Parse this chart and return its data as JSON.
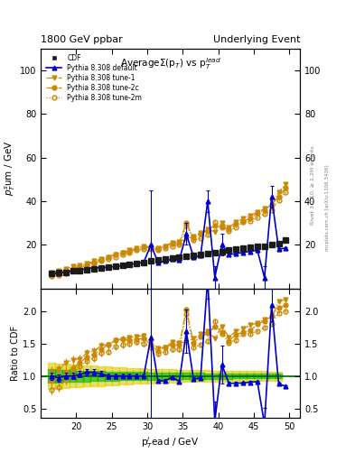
{
  "title_left": "1800 GeV ppbar",
  "title_right": "Underlying Event",
  "plot_title": "Average$\\Sigma$(p$_T$) vs p$_T^{lead}$",
  "xlabel": "p$_T^l$ead / GeV",
  "ylabel_main": "p$_T^s$um / GeV",
  "ylabel_ratio": "Ratio to CDF",
  "xlim": [
    15.0,
    51.5
  ],
  "ylim_main": [
    0,
    110
  ],
  "ylim_ratio": [
    0.35,
    2.35
  ],
  "xticks": [
    20,
    25,
    30,
    35,
    40,
    45,
    50
  ],
  "yticks_main": [
    20,
    40,
    60,
    80,
    100
  ],
  "yticks_ratio": [
    0.5,
    1.0,
    1.5,
    2.0
  ],
  "pt": [
    16.5,
    17.5,
    18.5,
    19.5,
    20.5,
    21.5,
    22.5,
    23.5,
    24.5,
    25.5,
    26.5,
    27.5,
    28.5,
    29.5,
    30.5,
    31.5,
    32.5,
    33.5,
    34.5,
    35.5,
    36.5,
    37.5,
    38.5,
    39.5,
    40.5,
    41.5,
    42.5,
    43.5,
    44.5,
    45.5,
    46.5,
    47.5,
    48.5,
    49.5
  ],
  "cdf_y": [
    7.0,
    7.2,
    7.5,
    8.0,
    8.3,
    8.5,
    9.0,
    9.2,
    9.8,
    10.0,
    10.5,
    11.0,
    11.5,
    12.0,
    12.5,
    13.0,
    13.5,
    13.8,
    14.2,
    14.8,
    15.2,
    15.5,
    16.0,
    16.5,
    17.0,
    17.5,
    18.0,
    18.5,
    18.8,
    19.2,
    19.5,
    20.0,
    20.5,
    22.0
  ],
  "cdf_yerr": [
    0.7,
    0.7,
    0.7,
    0.7,
    0.7,
    0.7,
    0.7,
    0.7,
    0.7,
    0.7,
    0.7,
    0.7,
    0.7,
    0.7,
    0.7,
    0.7,
    0.7,
    0.7,
    0.7,
    0.7,
    0.7,
    0.7,
    0.7,
    0.7,
    0.7,
    0.7,
    0.7,
    0.7,
    0.7,
    0.7,
    0.7,
    0.7,
    0.7,
    0.7
  ],
  "py_default_y": [
    7.0,
    7.0,
    7.5,
    8.0,
    8.5,
    9.0,
    9.5,
    9.5,
    9.8,
    10.0,
    10.5,
    11.0,
    11.5,
    12.0,
    20.0,
    12.0,
    12.5,
    13.5,
    13.0,
    25.0,
    14.5,
    15.0,
    40.0,
    5.0,
    20.0,
    15.5,
    16.0,
    16.5,
    17.0,
    17.5,
    5.0,
    42.0,
    18.0,
    18.5
  ],
  "py_default_yerr": [
    0.4,
    0.4,
    0.4,
    0.4,
    0.4,
    0.4,
    0.4,
    0.4,
    0.4,
    0.4,
    0.4,
    0.4,
    0.4,
    0.4,
    25.0,
    0.4,
    0.4,
    0.4,
    0.4,
    5.0,
    0.4,
    0.4,
    5.0,
    5.0,
    5.0,
    0.4,
    0.4,
    0.4,
    0.4,
    0.4,
    5.0,
    5.0,
    0.4,
    0.4
  ],
  "py_tune1_y": [
    7.5,
    8.0,
    9.0,
    10.0,
    10.5,
    11.5,
    12.5,
    13.5,
    14.5,
    15.5,
    16.5,
    17.5,
    18.5,
    19.5,
    19.0,
    18.5,
    19.5,
    21.0,
    21.5,
    22.5,
    24.0,
    25.5,
    27.0,
    26.0,
    30.0,
    28.0,
    30.5,
    32.0,
    33.5,
    35.0,
    36.5,
    38.0,
    44.0,
    48.0
  ],
  "py_tune1_yerr": [
    0.5,
    0.5,
    0.5,
    0.5,
    0.5,
    0.5,
    0.5,
    0.5,
    0.5,
    0.5,
    0.5,
    0.5,
    0.5,
    0.5,
    0.5,
    0.5,
    0.5,
    0.5,
    0.5,
    0.5,
    0.5,
    0.5,
    0.5,
    0.5,
    0.5,
    0.5,
    0.5,
    0.5,
    0.5,
    0.5,
    0.5,
    0.5,
    0.5,
    0.5
  ],
  "py_tune2c_y": [
    6.5,
    7.0,
    8.0,
    9.0,
    10.0,
    11.0,
    12.0,
    13.0,
    14.5,
    15.5,
    16.5,
    17.0,
    18.0,
    19.0,
    18.5,
    18.0,
    19.5,
    20.5,
    21.0,
    30.0,
    23.0,
    25.0,
    26.5,
    29.0,
    28.5,
    27.0,
    29.5,
    31.0,
    32.0,
    34.5,
    36.0,
    38.5,
    42.0,
    46.0
  ],
  "py_tune2c_yerr": [
    0.5,
    0.5,
    0.5,
    0.5,
    0.5,
    0.5,
    0.5,
    0.5,
    0.5,
    0.5,
    0.5,
    0.5,
    0.5,
    0.5,
    0.5,
    0.5,
    0.5,
    0.5,
    0.5,
    0.5,
    0.5,
    0.5,
    0.5,
    0.5,
    0.5,
    0.5,
    0.5,
    0.5,
    0.5,
    0.5,
    0.5,
    0.5,
    0.5,
    0.5
  ],
  "py_tune2m_y": [
    5.5,
    6.0,
    7.0,
    8.0,
    9.5,
    10.5,
    11.5,
    12.5,
    13.5,
    14.5,
    15.5,
    16.5,
    17.5,
    18.0,
    18.0,
    17.5,
    18.5,
    19.5,
    20.0,
    29.0,
    22.0,
    23.0,
    24.5,
    30.5,
    28.0,
    26.5,
    28.0,
    30.5,
    31.0,
    32.5,
    34.0,
    36.0,
    40.5,
    44.0
  ],
  "py_tune2m_yerr": [
    0.5,
    0.5,
    0.5,
    0.5,
    0.5,
    0.5,
    0.5,
    0.5,
    0.5,
    0.5,
    0.5,
    0.5,
    0.5,
    0.5,
    0.5,
    0.5,
    0.5,
    0.5,
    0.5,
    0.5,
    0.5,
    0.5,
    0.5,
    0.5,
    0.5,
    0.5,
    0.5,
    0.5,
    0.5,
    0.5,
    0.5,
    0.5,
    0.5,
    0.5
  ],
  "color_cdf": "#1a1a1a",
  "color_default": "#0000cc",
  "color_tune1": "#cc8800",
  "color_tune2c": "#cc8800",
  "color_tune2m": "#cc8800",
  "color_band_green": "#00bb00",
  "color_band_yellow": "#ddcc00",
  "bg_color": "#ffffff"
}
